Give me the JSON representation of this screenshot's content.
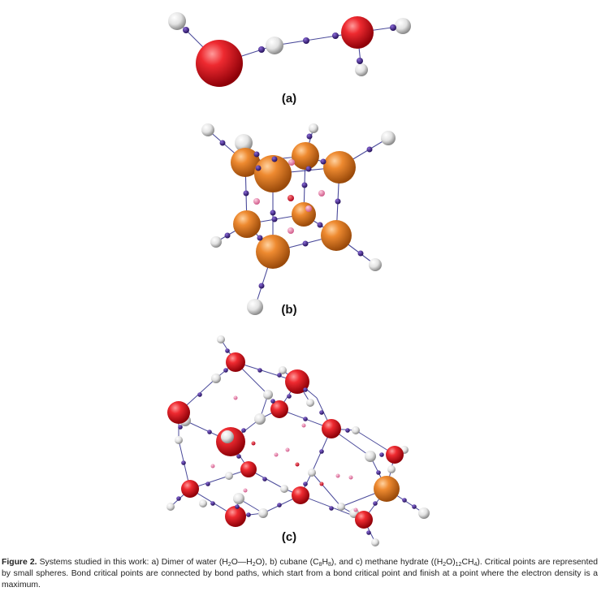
{
  "panel_labels": [
    "(a)",
    "(b)",
    "(c)"
  ],
  "caption": {
    "figure_label": "Figure 2.",
    "text_parts": [
      " Systems studied in this work: a) Dimer of water (H",
      "2",
      "O—H",
      "2",
      "O), b) cubane (C",
      "8",
      "H",
      "8",
      "), and c) methane hydrate ((H",
      "2",
      "O)",
      "12",
      "CH",
      "4",
      "). Critical points are represented by small spheres. Bond critical points are connected by bond paths, which start from a bond critical point and finish at a point where the electron density is a maximum."
    ]
  },
  "colors": {
    "oxygen": "#e0101c",
    "carbon": "#e8842a",
    "hydrogen": "#ececec",
    "bond_critical_point": "#3a1f8a",
    "ring_critical_point": "#e77aa6",
    "cage_critical_point": "#d01030",
    "bond_path": "#4a4a9a"
  }
}
